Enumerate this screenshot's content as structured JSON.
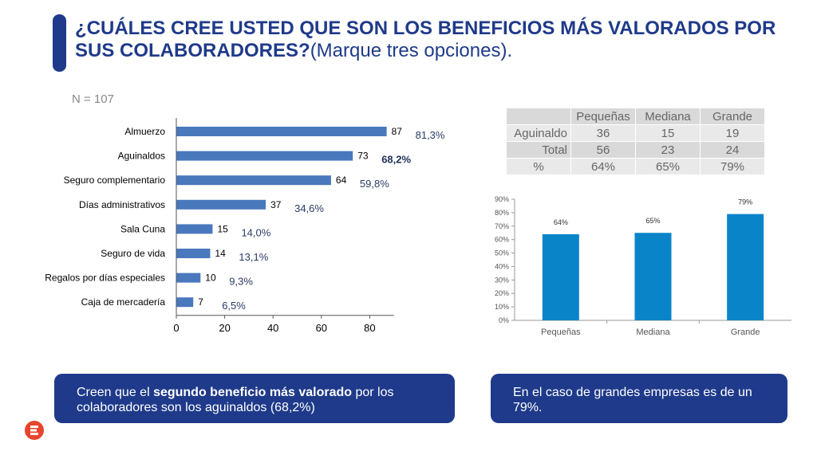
{
  "title": {
    "bold": "¿CUÁLES CREE USTED QUE SON LOS BENEFICIOS MÁS VALORADOS POR SUS COLABORADORES?",
    "normal": "(Marque tres opciones)."
  },
  "n_label": "N = 107",
  "colors": {
    "accent": "#1f3a8a",
    "bar_h": "#4a78bd",
    "bar_v": "#0a84c9"
  },
  "chart_data": [
    {
      "type": "bar",
      "orientation": "horizontal",
      "categories": [
        "Almuerzo",
        "Aguinaldos",
        "Seguro complementario",
        "Días administrativos",
        "Sala Cuna",
        "Seguro de vida",
        "Regalos por días especiales",
        "Caja de mercadería"
      ],
      "values": [
        87,
        73,
        64,
        37,
        15,
        14,
        10,
        7
      ],
      "value_labels": [
        "87",
        "73",
        "64",
        "37",
        "15",
        "14",
        "10",
        "7"
      ],
      "percent_labels": [
        "81,3%",
        "68,2%",
        "59,8%",
        "34,6%",
        "14,0%",
        "13,1%",
        "9,3%",
        "6,5%"
      ],
      "highlight_index": 1,
      "xticks": [
        "0",
        "20",
        "40",
        "60",
        "80"
      ],
      "xlim": [
        0,
        90
      ],
      "title": "",
      "xlabel": "",
      "ylabel": ""
    },
    {
      "type": "bar",
      "categories": [
        "Pequeñas",
        "Mediana",
        "Grande"
      ],
      "values": [
        64,
        65,
        79
      ],
      "value_labels": [
        "64%",
        "65%",
        "79%"
      ],
      "yticks": [
        "90%",
        "80%",
        "70%",
        "60%",
        "50%",
        "40%",
        "30%",
        "20%",
        "10%",
        "0%"
      ],
      "ylim": [
        0,
        90
      ],
      "title": "",
      "xlabel": "",
      "ylabel": ""
    }
  ],
  "table": {
    "headers": [
      "",
      "Pequeñas",
      "Mediana",
      "Grande"
    ],
    "rows": [
      [
        "Aguinaldo",
        "36",
        "15",
        "19"
      ],
      [
        "Total",
        "56",
        "23",
        "24"
      ],
      [
        "%",
        "64%",
        "65%",
        "79%"
      ]
    ]
  },
  "callout_left": {
    "pre": "Creen que el ",
    "bold": "segundo beneficio más valorado",
    "post": " por los colaboradores son los aguinaldos  (68,2%)"
  },
  "callout_right": {
    "text": "En el caso de grandes empresas es de un 79%."
  },
  "logo": {
    "icon": "brand-logo-icon"
  }
}
